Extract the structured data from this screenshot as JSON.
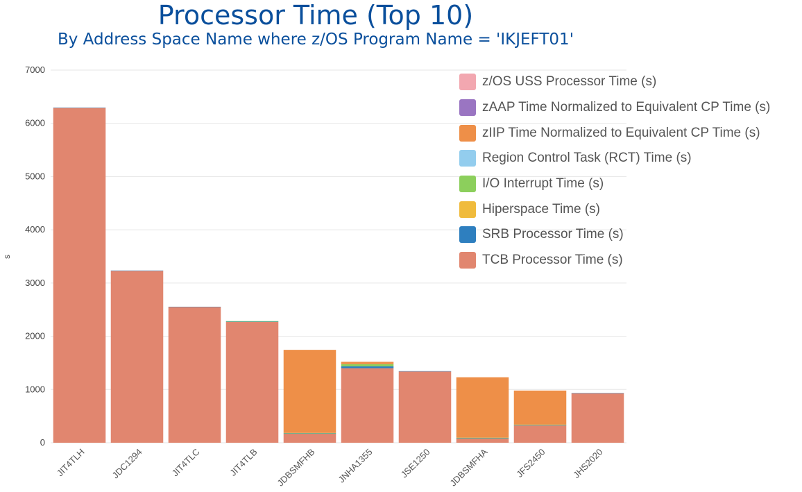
{
  "chart_data": {
    "type": "bar",
    "stacked": true,
    "title": "Processor Time (Top 10)",
    "subtitle": "By Address Space Name where z/OS Program Name = 'IKJEFT01'",
    "ylabel": "s",
    "ylim": [
      0,
      7000
    ],
    "yticks": [
      0,
      1000,
      2000,
      3000,
      4000,
      5000,
      6000,
      7000
    ],
    "grid": true,
    "legend_position": "top-right",
    "categories": [
      "JIT4TLH",
      "JDC1294",
      "JIT4TLC",
      "JIT4TLB",
      "JDBSMFHB",
      "JNHA1355",
      "JSE1250",
      "JDBSMFHA",
      "JFS2450",
      "JHS2020"
    ],
    "series": [
      {
        "name": "TCB Processor Time (s)",
        "color": "#e1866f",
        "values": [
          6290,
          3230,
          2550,
          2270,
          170,
          1400,
          1340,
          80,
          325,
          930
        ]
      },
      {
        "name": "SRB Processor Time (s)",
        "color": "#2e7fbf",
        "values": [
          5,
          5,
          5,
          5,
          5,
          35,
          5,
          5,
          5,
          5
        ]
      },
      {
        "name": "Hiperspace Time (s)",
        "color": "#f0bb3c",
        "values": [
          0,
          0,
          0,
          0,
          0,
          0,
          0,
          0,
          0,
          0
        ]
      },
      {
        "name": "I/O Interrupt Time (s)",
        "color": "#8ccf5c",
        "values": [
          0,
          0,
          0,
          10,
          10,
          40,
          0,
          10,
          10,
          0
        ]
      },
      {
        "name": "Region Control Task (RCT) Time (s)",
        "color": "#93cdee",
        "values": [
          0,
          0,
          0,
          0,
          0,
          0,
          0,
          0,
          0,
          0
        ]
      },
      {
        "name": "zIIP Time Normalized to Equivalent CP Time (s)",
        "color": "#ee8f48",
        "values": [
          0,
          0,
          0,
          0,
          1560,
          45,
          0,
          1135,
          640,
          0
        ]
      },
      {
        "name": "zAAP Time Normalized to Equivalent CP Time (s)",
        "color": "#9a75c2",
        "values": [
          0,
          0,
          0,
          0,
          0,
          0,
          0,
          0,
          0,
          0
        ]
      },
      {
        "name": "z/OS USS Processor Time (s)",
        "color": "#f2a7b0",
        "values": [
          0,
          0,
          0,
          0,
          0,
          0,
          0,
          0,
          0,
          0
        ]
      }
    ],
    "legend_order": [
      "z/OS USS Processor Time (s)",
      "zAAP Time Normalized to Equivalent CP Time (s)",
      "zIIP Time Normalized to Equivalent CP Time (s)",
      "Region Control Task (RCT) Time (s)",
      "I/O Interrupt Time (s)",
      "Hiperspace Time (s)",
      "SRB Processor Time (s)",
      "TCB Processor Time (s)"
    ]
  }
}
